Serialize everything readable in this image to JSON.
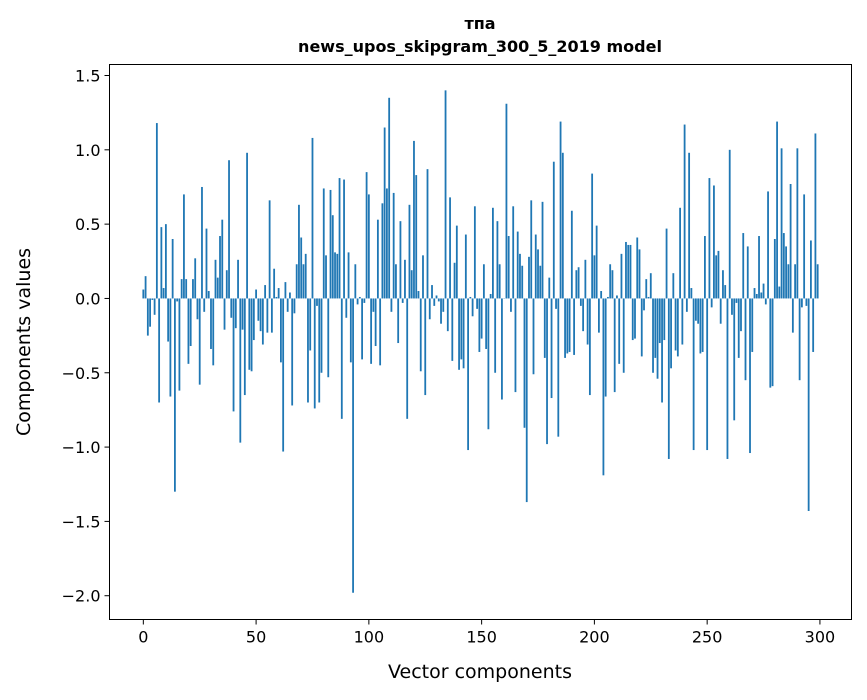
{
  "chart_data": {
    "type": "bar",
    "title": "тпа",
    "subtitle": "news_upos_skipgram_300_5_2019 model",
    "xlabel": "Vector components",
    "ylabel": "Components values",
    "xlim": [
      -15,
      314
    ],
    "ylim": [
      -2.16,
      1.574
    ],
    "xticks": [
      0,
      50,
      100,
      150,
      200,
      250,
      300
    ],
    "xtick_labels": [
      "0",
      "50",
      "100",
      "150",
      "200",
      "250",
      "300"
    ],
    "yticks": [
      -2.0,
      -1.5,
      -1.0,
      -0.5,
      0.0,
      0.5,
      1.0,
      1.5
    ],
    "ytick_labels": [
      "−2.0",
      "−1.5",
      "−1.0",
      "−0.5",
      "0.0",
      "0.5",
      "1.0",
      "1.5"
    ],
    "grid": false,
    "bar_color": "#1f77b4",
    "values": [
      0.06,
      0.15,
      -0.25,
      -0.19,
      -0.01,
      -0.11,
      1.18,
      -0.7,
      0.48,
      0.07,
      0.5,
      -0.29,
      -0.66,
      0.4,
      -1.3,
      -0.02,
      -0.62,
      0.13,
      0.7,
      0.13,
      -0.44,
      -0.32,
      0.13,
      0.27,
      -0.14,
      -0.58,
      0.75,
      -0.09,
      0.47,
      0.05,
      -0.34,
      -0.45,
      0.26,
      0.14,
      0.42,
      0.53,
      -0.21,
      0.19,
      0.93,
      -0.13,
      -0.76,
      -0.2,
      0.26,
      -0.97,
      -0.21,
      -0.65,
      0.98,
      -0.48,
      -0.49,
      -0.28,
      0.06,
      -0.15,
      -0.22,
      -0.31,
      0.09,
      -0.23,
      0.66,
      -0.23,
      0.2,
      0.01,
      0.07,
      -0.43,
      -1.03,
      0.11,
      -0.09,
      0.04,
      -0.72,
      -0.1,
      0.23,
      0.63,
      0.41,
      0.23,
      0.3,
      -0.7,
      -0.35,
      1.08,
      -0.74,
      -0.05,
      -0.7,
      -0.5,
      0.74,
      0.29,
      -0.53,
      0.73,
      0.56,
      0.31,
      0.3,
      0.81,
      -0.81,
      0.8,
      -0.13,
      0.31,
      -0.43,
      -1.98,
      0.23,
      -0.04,
      0.01,
      -0.41,
      -0.03,
      0.85,
      0.7,
      -0.44,
      -0.09,
      -0.32,
      0.53,
      -0.45,
      0.64,
      1.15,
      0.74,
      1.35,
      -0.09,
      0.71,
      0.23,
      -0.3,
      0.52,
      -0.03,
      0.26,
      -0.81,
      0.63,
      0.19,
      1.06,
      0.83,
      0.05,
      -0.49,
      0.29,
      -0.65,
      0.87,
      -0.14,
      0.09,
      -0.05,
      0.02,
      -0.02,
      -0.17,
      -0.09,
      1.4,
      -0.22,
      0.68,
      -0.42,
      0.24,
      0.49,
      -0.48,
      -0.41,
      -0.47,
      0.43,
      -1.02,
      0.01,
      -0.12,
      0.62,
      -0.07,
      -0.36,
      -0.27,
      0.23,
      -0.34,
      -0.88,
      0.03,
      0.61,
      -0.5,
      0.52,
      0.23,
      -0.68,
      0.0,
      1.31,
      0.42,
      -0.09,
      0.62,
      -0.63,
      0.45,
      0.3,
      0.22,
      -0.87,
      -1.37,
      0.28,
      0.66,
      -0.51,
      0.43,
      0.33,
      0.22,
      0.65,
      -0.4,
      -0.98,
      0.14,
      -0.67,
      0.92,
      -0.07,
      -0.93,
      1.19,
      0.98,
      -0.4,
      -0.37,
      -0.36,
      0.59,
      -0.38,
      0.19,
      0.21,
      -0.05,
      -0.22,
      0.26,
      -0.31,
      -0.65,
      0.84,
      0.29,
      0.49,
      -0.23,
      0.05,
      -1.19,
      -0.66,
      0.01,
      0.23,
      0.19,
      -0.63,
      0.02,
      -0.44,
      0.3,
      -0.5,
      0.38,
      0.36,
      0.36,
      -0.28,
      -0.27,
      0.41,
      0.33,
      -0.39,
      -0.08,
      0.13,
      0.01,
      0.17,
      -0.5,
      -0.4,
      -0.54,
      -0.3,
      -0.7,
      -0.28,
      0.47,
      -1.08,
      -0.47,
      0.17,
      -0.35,
      -0.39,
      0.61,
      -0.31,
      1.17,
      -0.09,
      0.98,
      0.07,
      -1.02,
      -0.15,
      -0.17,
      -0.37,
      -0.36,
      0.42,
      -1.02,
      0.81,
      -0.06,
      0.76,
      0.29,
      0.32,
      -0.17,
      0.19,
      0.09,
      -1.08,
      1.0,
      -0.11,
      -0.82,
      -0.03,
      -0.4,
      -0.22,
      0.44,
      -0.55,
      0.35,
      -1.04,
      -0.36,
      0.07,
      0.03,
      0.42,
      0.04,
      0.1,
      -0.04,
      0.72,
      -0.6,
      -0.59,
      0.4,
      1.19,
      0.08,
      1.01,
      0.44,
      0.35,
      0.23,
      0.77,
      -0.23,
      0.23,
      1.01,
      -0.55,
      -0.06,
      0.7,
      -0.05,
      -1.43,
      0.39,
      -0.36,
      1.11,
      0.23
    ]
  }
}
